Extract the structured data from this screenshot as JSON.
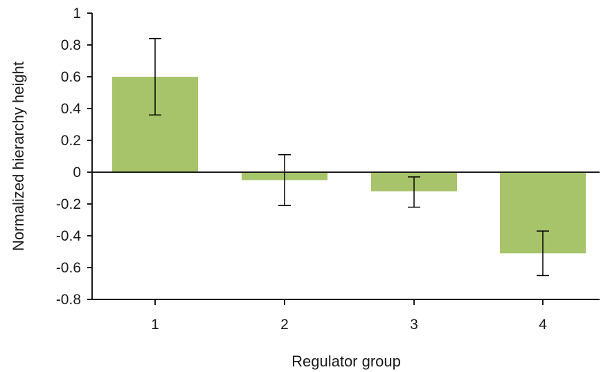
{
  "chart_data": {
    "type": "bar",
    "title": "",
    "xlabel": "Regulator group",
    "ylabel": "Normalized hierarchy height",
    "categories": [
      "1",
      "2",
      "3",
      "4"
    ],
    "series": [
      {
        "values": [
          0.6,
          -0.05,
          -0.12,
          -0.51
        ],
        "error_low": [
          0.36,
          -0.21,
          -0.22,
          -0.65
        ],
        "error_high": [
          0.84,
          0.11,
          -0.03,
          -0.37
        ]
      }
    ],
    "ylim": [
      -0.8,
      1
    ],
    "yticks": [
      1,
      0.8,
      0.6,
      0.4,
      0.2,
      0,
      -0.2,
      -0.4,
      -0.6,
      -0.8
    ],
    "ytick_labels": [
      "1",
      "0.8",
      "0.6",
      "0.4",
      "0.2",
      "0",
      "-0.2",
      "-0.4",
      "-0.6",
      "-0.8"
    ],
    "grid": false,
    "legend": "none",
    "bar_color": "#a8c46a",
    "axis_color": "#1a1a1a"
  }
}
